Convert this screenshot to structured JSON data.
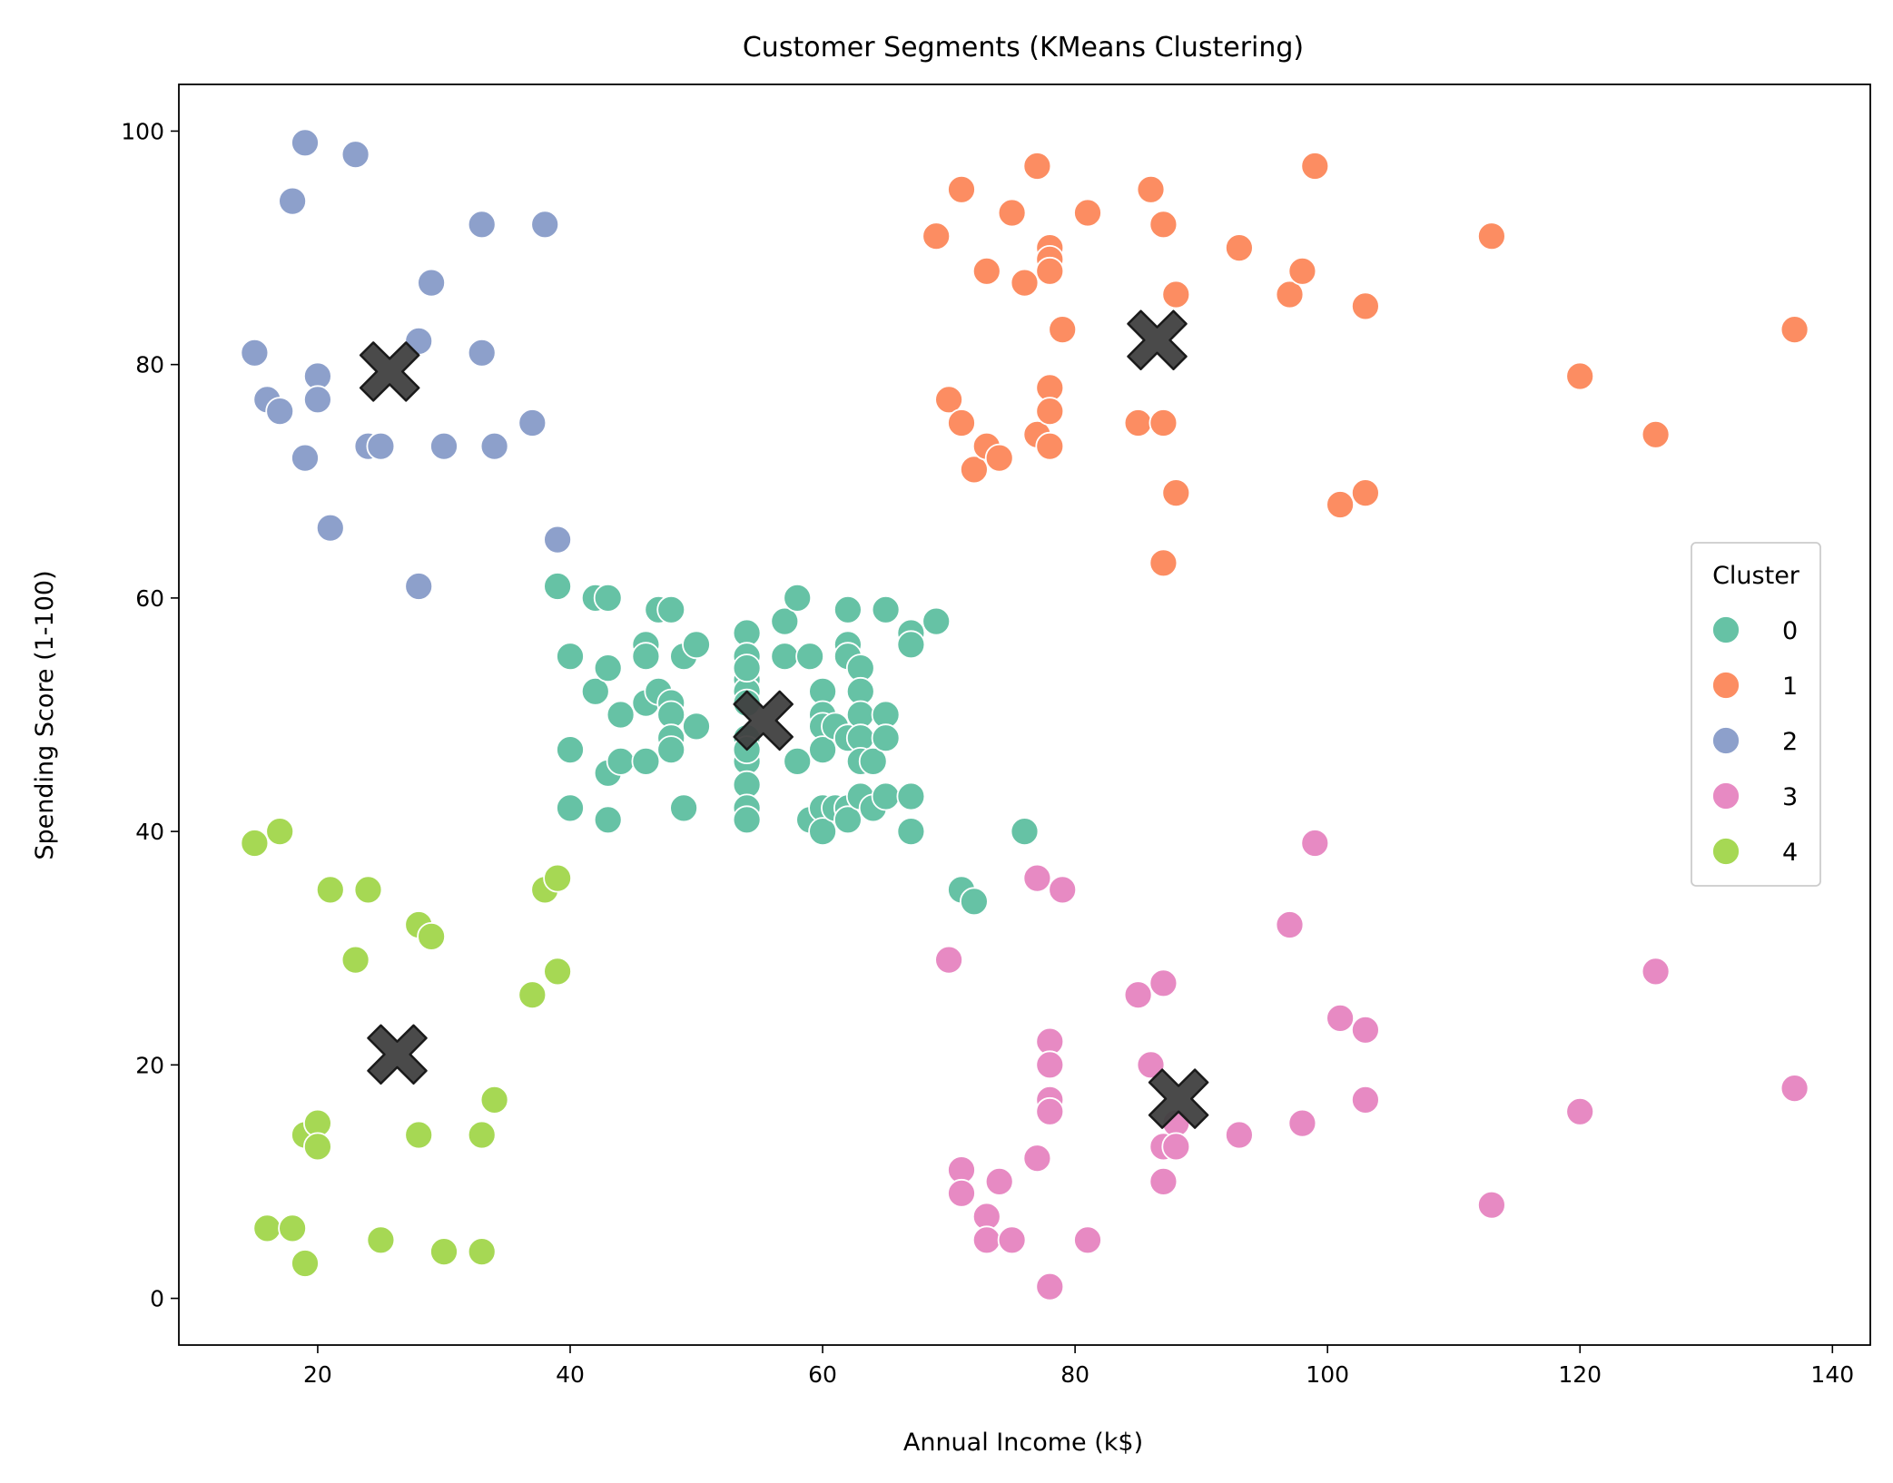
{
  "chart_data": {
    "type": "scatter",
    "title": "Customer Segments (KMeans Clustering)",
    "xlabel": "Annual Income (k$)",
    "ylabel": "Spending Score (1-100)",
    "xlim": [
      9,
      143
    ],
    "ylim": [
      -4,
      104
    ],
    "xticks": [
      20,
      40,
      60,
      80,
      100,
      120,
      140
    ],
    "yticks": [
      0,
      20,
      40,
      60,
      80,
      100
    ],
    "grid": false,
    "legend": {
      "title": "Cluster",
      "placement": "center-right"
    },
    "series": [
      {
        "name": "0",
        "color": "#66c2a5",
        "points": [
          [
            39,
            61
          ],
          [
            40,
            55
          ],
          [
            40,
            47
          ],
          [
            40,
            42
          ],
          [
            42,
            52
          ],
          [
            42,
            60
          ],
          [
            43,
            60
          ],
          [
            43,
            54
          ],
          [
            43,
            45
          ],
          [
            43,
            41
          ],
          [
            44,
            50
          ],
          [
            44,
            46
          ],
          [
            46,
            56
          ],
          [
            46,
            55
          ],
          [
            46,
            51
          ],
          [
            46,
            46
          ],
          [
            47,
            59
          ],
          [
            47,
            52
          ],
          [
            48,
            59
          ],
          [
            48,
            51
          ],
          [
            48,
            50
          ],
          [
            48,
            48
          ],
          [
            48,
            47
          ],
          [
            49,
            55
          ],
          [
            49,
            42
          ],
          [
            50,
            56
          ],
          [
            50,
            49
          ],
          [
            54,
            57
          ],
          [
            54,
            55
          ],
          [
            54,
            53
          ],
          [
            54,
            52
          ],
          [
            54,
            51
          ],
          [
            54,
            48
          ],
          [
            54,
            46
          ],
          [
            54,
            44
          ],
          [
            54,
            42
          ],
          [
            54,
            41
          ],
          [
            54,
            47
          ],
          [
            54,
            54
          ],
          [
            57,
            58
          ],
          [
            57,
            55
          ],
          [
            58,
            60
          ],
          [
            58,
            46
          ],
          [
            59,
            55
          ],
          [
            59,
            41
          ],
          [
            60,
            52
          ],
          [
            60,
            50
          ],
          [
            60,
            49
          ],
          [
            60,
            47
          ],
          [
            60,
            42
          ],
          [
            60,
            40
          ],
          [
            61,
            49
          ],
          [
            61,
            42
          ],
          [
            62,
            59
          ],
          [
            62,
            56
          ],
          [
            62,
            55
          ],
          [
            62,
            48
          ],
          [
            62,
            42
          ],
          [
            62,
            41
          ],
          [
            63,
            54
          ],
          [
            63,
            52
          ],
          [
            63,
            50
          ],
          [
            63,
            48
          ],
          [
            63,
            46
          ],
          [
            63,
            43
          ],
          [
            64,
            46
          ],
          [
            64,
            42
          ],
          [
            65,
            59
          ],
          [
            65,
            50
          ],
          [
            65,
            48
          ],
          [
            65,
            43
          ],
          [
            67,
            57
          ],
          [
            67,
            56
          ],
          [
            67,
            43
          ],
          [
            67,
            40
          ],
          [
            69,
            58
          ],
          [
            71,
            35
          ],
          [
            72,
            34
          ],
          [
            76,
            40
          ]
        ]
      },
      {
        "name": "1",
        "color": "#fc8d62",
        "points": [
          [
            69,
            91
          ],
          [
            70,
            77
          ],
          [
            71,
            95
          ],
          [
            71,
            75
          ],
          [
            72,
            71
          ],
          [
            73,
            88
          ],
          [
            73,
            73
          ],
          [
            74,
            72
          ],
          [
            75,
            93
          ],
          [
            76,
            87
          ],
          [
            77,
            97
          ],
          [
            77,
            74
          ],
          [
            78,
            90
          ],
          [
            78,
            89
          ],
          [
            78,
            88
          ],
          [
            78,
            78
          ],
          [
            78,
            76
          ],
          [
            78,
            73
          ],
          [
            79,
            83
          ],
          [
            81,
            93
          ],
          [
            85,
            75
          ],
          [
            86,
            95
          ],
          [
            87,
            92
          ],
          [
            87,
            75
          ],
          [
            87,
            63
          ],
          [
            88,
            86
          ],
          [
            88,
            69
          ],
          [
            93,
            90
          ],
          [
            97,
            86
          ],
          [
            98,
            88
          ],
          [
            99,
            97
          ],
          [
            101,
            68
          ],
          [
            103,
            85
          ],
          [
            103,
            69
          ],
          [
            113,
            91
          ],
          [
            120,
            79
          ],
          [
            126,
            74
          ],
          [
            137,
            83
          ]
        ]
      },
      {
        "name": "2",
        "color": "#8da0cb",
        "points": [
          [
            15,
            81
          ],
          [
            16,
            77
          ],
          [
            17,
            76
          ],
          [
            18,
            94
          ],
          [
            19,
            99
          ],
          [
            19,
            72
          ],
          [
            20,
            79
          ],
          [
            20,
            77
          ],
          [
            21,
            66
          ],
          [
            23,
            98
          ],
          [
            24,
            73
          ],
          [
            25,
            73
          ],
          [
            28,
            82
          ],
          [
            28,
            61
          ],
          [
            29,
            87
          ],
          [
            30,
            73
          ],
          [
            33,
            92
          ],
          [
            33,
            81
          ],
          [
            34,
            73
          ],
          [
            37,
            75
          ],
          [
            38,
            92
          ],
          [
            39,
            65
          ]
        ]
      },
      {
        "name": "3",
        "color": "#e78ac3",
        "points": [
          [
            70,
            29
          ],
          [
            71,
            11
          ],
          [
            71,
            9
          ],
          [
            73,
            7
          ],
          [
            73,
            5
          ],
          [
            74,
            10
          ],
          [
            75,
            5
          ],
          [
            77,
            36
          ],
          [
            77,
            12
          ],
          [
            78,
            22
          ],
          [
            78,
            20
          ],
          [
            78,
            17
          ],
          [
            78,
            16
          ],
          [
            78,
            1
          ],
          [
            79,
            35
          ],
          [
            81,
            5
          ],
          [
            85,
            26
          ],
          [
            86,
            20
          ],
          [
            87,
            27
          ],
          [
            87,
            13
          ],
          [
            87,
            10
          ],
          [
            88,
            15
          ],
          [
            88,
            13
          ],
          [
            93,
            14
          ],
          [
            97,
            32
          ],
          [
            98,
            15
          ],
          [
            99,
            39
          ],
          [
            101,
            24
          ],
          [
            103,
            23
          ],
          [
            103,
            17
          ],
          [
            113,
            8
          ],
          [
            120,
            16
          ],
          [
            126,
            28
          ],
          [
            137,
            18
          ]
        ]
      },
      {
        "name": "4",
        "color": "#a6d854",
        "points": [
          [
            15,
            39
          ],
          [
            16,
            6
          ],
          [
            17,
            40
          ],
          [
            18,
            6
          ],
          [
            19,
            14
          ],
          [
            19,
            3
          ],
          [
            20,
            15
          ],
          [
            20,
            13
          ],
          [
            21,
            35
          ],
          [
            23,
            29
          ],
          [
            24,
            35
          ],
          [
            25,
            5
          ],
          [
            28,
            32
          ],
          [
            28,
            14
          ],
          [
            29,
            31
          ],
          [
            30,
            4
          ],
          [
            33,
            14
          ],
          [
            33,
            4
          ],
          [
            34,
            17
          ],
          [
            37,
            26
          ],
          [
            38,
            35
          ],
          [
            39,
            36
          ],
          [
            39,
            28
          ]
        ]
      }
    ],
    "centroids": {
      "marker": "X",
      "color": "#404040",
      "points": [
        [
          55.3,
          49.5
        ],
        [
          86.5,
          82.1
        ],
        [
          25.7,
          79.4
        ],
        [
          88.2,
          17.1
        ],
        [
          26.3,
          20.9
        ]
      ]
    }
  }
}
